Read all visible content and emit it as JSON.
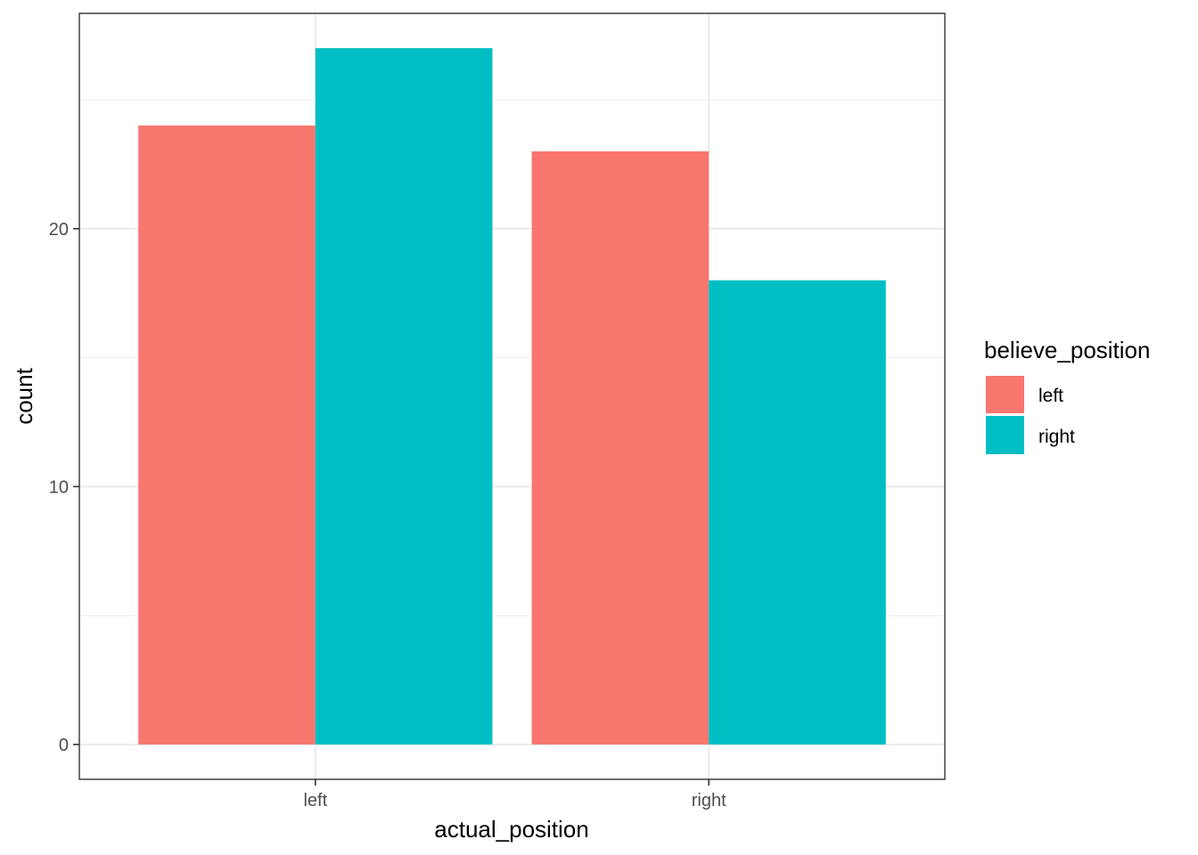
{
  "chart_data": {
    "type": "bar",
    "xlabel": "actual_position",
    "ylabel": "count",
    "categories": [
      "left",
      "right"
    ],
    "series": [
      {
        "name": "left",
        "color": "#F8766D",
        "values": [
          24,
          23
        ]
      },
      {
        "name": "right",
        "color": "#00BFC4",
        "values": [
          27,
          18
        ]
      }
    ],
    "ylim": [
      -1.35,
      28.35
    ],
    "yticks": [
      0,
      10,
      20
    ],
    "grid": true,
    "legend": {
      "title": "believe_position",
      "position": "right"
    }
  }
}
